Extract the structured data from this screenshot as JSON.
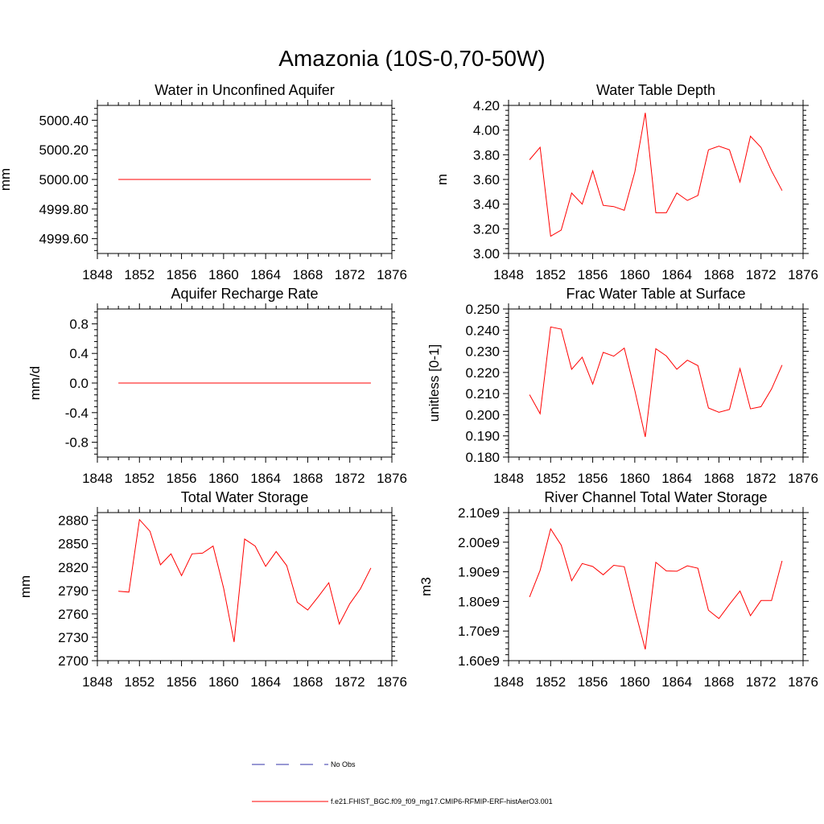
{
  "figure": {
    "title": "Amazonia (10S-0,70-50W)",
    "legend": [
      {
        "label": "No Obs",
        "color": "#3333aa",
        "style": "dashed"
      },
      {
        "label": "f.e21.FHIST_BGC.f09_f09_mg17.CMIP6-RFMIP-ERF-histAerO3.001",
        "color": "#ff0000",
        "style": "solid"
      }
    ]
  },
  "chart_data": [
    {
      "type": "line",
      "title": "Water in Unconfined Aquifer",
      "ylabel": "mm",
      "xlim": [
        1848,
        1876
      ],
      "ylim": [
        4999.5,
        5000.5
      ],
      "xticks": [
        1848,
        1852,
        1856,
        1860,
        1864,
        1868,
        1872,
        1876
      ],
      "yticks": [
        4999.6,
        4999.8,
        5000.0,
        5000.2,
        5000.4
      ],
      "ytick_labels": [
        "4999.60",
        "4999.80",
        "5000.00",
        "5000.20",
        "5000.40"
      ],
      "x": [
        1850,
        1851,
        1852,
        1853,
        1854,
        1855,
        1856,
        1857,
        1858,
        1859,
        1860,
        1861,
        1862,
        1863,
        1864,
        1865,
        1866,
        1867,
        1868,
        1869,
        1870,
        1871,
        1872,
        1873,
        1874
      ],
      "values": [
        5000,
        5000,
        5000,
        5000,
        5000,
        5000,
        5000,
        5000,
        5000,
        5000,
        5000,
        5000,
        5000,
        5000,
        5000,
        5000,
        5000,
        5000,
        5000,
        5000,
        5000,
        5000,
        5000,
        5000,
        5000
      ]
    },
    {
      "type": "line",
      "title": "Water Table Depth",
      "ylabel": "m",
      "xlim": [
        1848,
        1876
      ],
      "ylim": [
        3.0,
        4.2
      ],
      "xticks": [
        1848,
        1852,
        1856,
        1860,
        1864,
        1868,
        1872,
        1876
      ],
      "yticks": [
        3.0,
        3.2,
        3.4,
        3.6,
        3.8,
        4.0,
        4.2
      ],
      "ytick_labels": [
        "3.00",
        "3.20",
        "3.40",
        "3.60",
        "3.80",
        "4.00",
        "4.20"
      ],
      "x": [
        1850,
        1851,
        1852,
        1853,
        1854,
        1855,
        1856,
        1857,
        1858,
        1859,
        1860,
        1861,
        1862,
        1863,
        1864,
        1865,
        1866,
        1867,
        1868,
        1869,
        1870,
        1871,
        1872,
        1873,
        1874
      ],
      "values": [
        3.76,
        3.86,
        3.14,
        3.19,
        3.49,
        3.4,
        3.67,
        3.39,
        3.38,
        3.35,
        3.66,
        4.14,
        3.33,
        3.33,
        3.49,
        3.43,
        3.47,
        3.84,
        3.87,
        3.84,
        3.58,
        3.95,
        3.86,
        3.67,
        3.51
      ]
    },
    {
      "type": "line",
      "title": "Aquifer Recharge Rate",
      "ylabel": "mm/d",
      "xlim": [
        1848,
        1876
      ],
      "ylim": [
        -1.0,
        1.0
      ],
      "xticks": [
        1848,
        1852,
        1856,
        1860,
        1864,
        1868,
        1872,
        1876
      ],
      "yticks": [
        -0.8,
        -0.4,
        0.0,
        0.4,
        0.8
      ],
      "ytick_labels": [
        "-0.8",
        "-0.4",
        "0.0",
        "0.4",
        "0.8"
      ],
      "x": [
        1850,
        1851,
        1852,
        1853,
        1854,
        1855,
        1856,
        1857,
        1858,
        1859,
        1860,
        1861,
        1862,
        1863,
        1864,
        1865,
        1866,
        1867,
        1868,
        1869,
        1870,
        1871,
        1872,
        1873,
        1874
      ],
      "values": [
        0,
        0,
        0,
        0,
        0,
        0,
        0,
        0,
        0,
        0,
        0,
        0,
        0,
        0,
        0,
        0,
        0,
        0,
        0,
        0,
        0,
        0,
        0,
        0,
        0
      ]
    },
    {
      "type": "line",
      "title": "Frac Water Table at Surface",
      "ylabel": "unitless [0-1]",
      "xlim": [
        1848,
        1876
      ],
      "ylim": [
        0.18,
        0.25
      ],
      "xticks": [
        1848,
        1852,
        1856,
        1860,
        1864,
        1868,
        1872,
        1876
      ],
      "yticks": [
        0.18,
        0.19,
        0.2,
        0.21,
        0.22,
        0.23,
        0.24,
        0.25
      ],
      "ytick_labels": [
        "0.180",
        "0.190",
        "0.200",
        "0.210",
        "0.220",
        "0.230",
        "0.240",
        "0.250"
      ],
      "x": [
        1850,
        1851,
        1852,
        1853,
        1854,
        1855,
        1856,
        1857,
        1858,
        1859,
        1860,
        1861,
        1862,
        1863,
        1864,
        1865,
        1866,
        1867,
        1868,
        1869,
        1870,
        1871,
        1872,
        1873,
        1874
      ],
      "values": [
        0.2095,
        0.2005,
        0.2415,
        0.2405,
        0.2215,
        0.2272,
        0.2145,
        0.2295,
        0.2277,
        0.2315,
        0.2115,
        0.1895,
        0.2312,
        0.2278,
        0.2215,
        0.2258,
        0.2232,
        0.2032,
        0.2012,
        0.2025,
        0.2218,
        0.2028,
        0.2038,
        0.2122,
        0.2235
      ]
    },
    {
      "type": "line",
      "title": "Total Water Storage",
      "ylabel": "mm",
      "xlim": [
        1848,
        1876
      ],
      "ylim": [
        2700,
        2890
      ],
      "xticks": [
        1848,
        1852,
        1856,
        1860,
        1864,
        1868,
        1872,
        1876
      ],
      "yticks": [
        2700,
        2730,
        2760,
        2790,
        2820,
        2850,
        2880
      ],
      "ytick_labels": [
        "2700",
        "2730",
        "2760",
        "2790",
        "2820",
        "2850",
        "2880"
      ],
      "x": [
        1850,
        1851,
        1852,
        1853,
        1854,
        1855,
        1856,
        1857,
        1858,
        1859,
        1860,
        1861,
        1862,
        1863,
        1864,
        1865,
        1866,
        1867,
        1868,
        1869,
        1870,
        1871,
        1872,
        1873,
        1874
      ],
      "values": [
        2789,
        2788,
        2881,
        2866,
        2823,
        2837,
        2809,
        2837,
        2838,
        2847,
        2793,
        2724,
        2856,
        2847,
        2821,
        2840,
        2822,
        2775,
        2765,
        2782,
        2800,
        2747,
        2773,
        2792,
        2819
      ]
    },
    {
      "type": "line",
      "title": "River Channel Total Water Storage",
      "ylabel": "m3",
      "xlim": [
        1848,
        1876
      ],
      "ylim": [
        1600000000.0,
        2100000000.0
      ],
      "xticks": [
        1848,
        1852,
        1856,
        1860,
        1864,
        1868,
        1872,
        1876
      ],
      "yticks": [
        1600000000.0,
        1700000000.0,
        1800000000.0,
        1900000000.0,
        2000000000.0,
        2100000000.0
      ],
      "ytick_labels": [
        "1.60e9",
        "1.70e9",
        "1.80e9",
        "1.90e9",
        "2.00e9",
        "2.10e9"
      ],
      "x": [
        1850,
        1851,
        1852,
        1853,
        1854,
        1855,
        1856,
        1857,
        1858,
        1859,
        1860,
        1861,
        1862,
        1863,
        1864,
        1865,
        1866,
        1867,
        1868,
        1869,
        1870,
        1871,
        1872,
        1873,
        1874
      ],
      "values": [
        1815000000.0,
        1905000000.0,
        2045000000.0,
        1990000000.0,
        1870000000.0,
        1928000000.0,
        1918000000.0,
        1890000000.0,
        1922000000.0,
        1917000000.0,
        1772000000.0,
        1638000000.0,
        1932000000.0,
        1903000000.0,
        1902000000.0,
        1920000000.0,
        1912000000.0,
        1770000000.0,
        1742000000.0,
        1790000000.0,
        1835000000.0,
        1752000000.0,
        1803000000.0,
        1803000000.0,
        1937000000.0
      ]
    }
  ]
}
